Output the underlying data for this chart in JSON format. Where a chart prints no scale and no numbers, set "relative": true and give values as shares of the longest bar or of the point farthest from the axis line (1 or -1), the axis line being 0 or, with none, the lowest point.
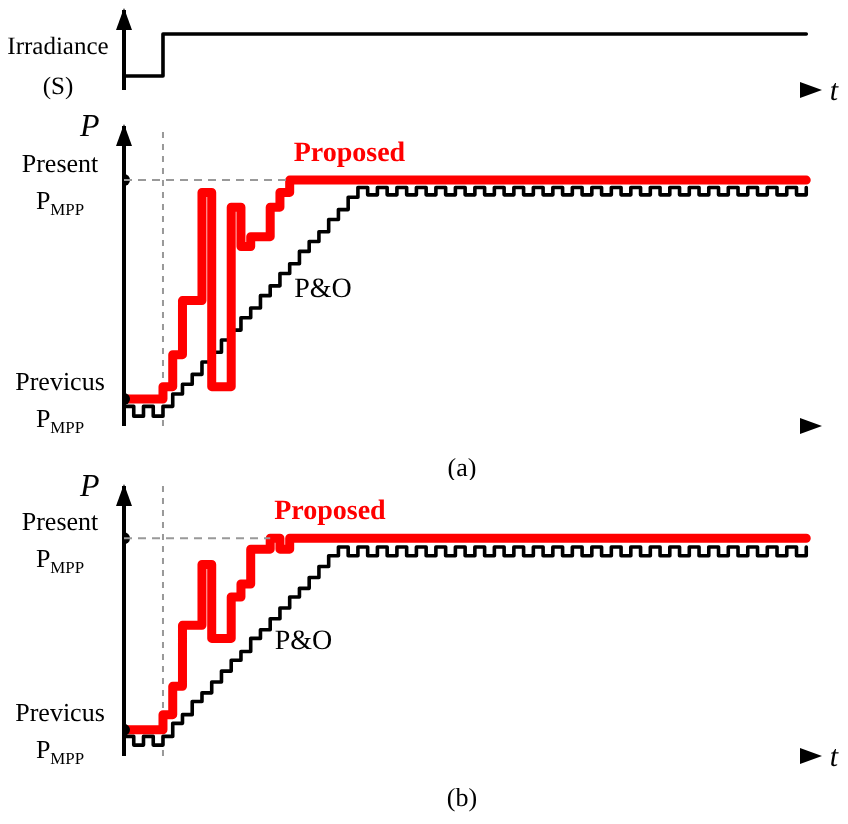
{
  "chart_data": [
    {
      "type": "step",
      "ylabel": "Irradiance (S)",
      "xlabel": "t",
      "relative": true,
      "categories": [
        null,
        null,
        null,
        null,
        null,
        null,
        null,
        null,
        null,
        null,
        null,
        null,
        null,
        null,
        null,
        null,
        null,
        null,
        null,
        null,
        null,
        null,
        null,
        null,
        null,
        null,
        null,
        null,
        null,
        null,
        null,
        null,
        null,
        null,
        null,
        null,
        null,
        null,
        null,
        null,
        null,
        null,
        null,
        null,
        null,
        null,
        null,
        null,
        null,
        null,
        null,
        null,
        null,
        null,
        null,
        null,
        null,
        null,
        null,
        null,
        null,
        null,
        null,
        null,
        null,
        null,
        null,
        null,
        null,
        null,
        null
      ],
      "series": [
        {
          "color": "#000000",
          "values": [
            0.25,
            0.25,
            0.25,
            0.25,
            1,
            1,
            1,
            1,
            1,
            1,
            1,
            1,
            1,
            1,
            1,
            1,
            1,
            1,
            1,
            1,
            1,
            1,
            1,
            1,
            1,
            1,
            1,
            1,
            1,
            1,
            1,
            1,
            1,
            1,
            1,
            1,
            1,
            1,
            1,
            1,
            1,
            1,
            1,
            1,
            1,
            1,
            1,
            1,
            1,
            1,
            1,
            1,
            1,
            1,
            1,
            1,
            1,
            1,
            1,
            1,
            1,
            1,
            1,
            1,
            1,
            1,
            1,
            1,
            1,
            1,
            1
          ]
        }
      ]
    },
    {
      "type": "step",
      "ylabel": "P",
      "relative": true,
      "annotations": [
        "(a)",
        "Previcus\nP$_{MPP}$",
        "Present\nP$_{MPP}$"
      ],
      "categories": [
        null,
        null,
        null,
        null,
        null,
        null,
        null,
        null,
        null,
        null,
        null,
        null,
        null,
        null,
        null,
        null,
        null,
        null,
        null,
        null,
        null,
        null,
        null,
        null,
        null,
        null,
        null,
        null,
        null,
        null,
        null,
        null,
        null,
        null,
        null,
        null,
        null,
        null,
        null,
        null,
        null,
        null,
        null,
        null,
        null,
        null,
        null,
        null,
        null,
        null,
        null,
        null,
        null,
        null,
        null,
        null,
        null,
        null,
        null,
        null,
        null,
        null,
        null,
        null,
        null,
        null,
        null,
        null,
        null,
        null,
        null
      ],
      "series": [
        {
          "name": "P&O",
          "color": "#000000",
          "values": [
            0.08,
            0.04,
            0.08,
            0.04,
            0.08,
            0.13,
            0.17,
            0.21,
            0.26,
            0.3,
            0.35,
            0.39,
            0.44,
            0.48,
            0.53,
            0.57,
            0.62,
            0.66,
            0.71,
            0.75,
            0.79,
            0.84,
            0.88,
            0.93,
            0.97,
            0.94,
            0.97,
            0.94,
            0.97,
            0.94,
            0.97,
            0.94,
            0.97,
            0.94,
            0.97,
            0.94,
            0.97,
            0.94,
            0.97,
            0.94,
            0.97,
            0.94,
            0.97,
            0.94,
            0.97,
            0.94,
            0.97,
            0.94,
            0.97,
            0.94,
            0.97,
            0.94,
            0.97,
            0.94,
            0.97,
            0.94,
            0.97,
            0.94,
            0.97,
            0.94,
            0.97,
            0.94,
            0.97,
            0.94,
            0.97,
            0.94,
            0.97,
            0.94,
            0.97,
            0.94,
            0.97
          ]
        },
        {
          "name": "Proposed",
          "color": "#ff0000",
          "values": [
            0.11,
            0.11,
            0.11,
            0.11,
            0.16,
            0.29,
            0.51,
            0.51,
            0.95,
            0.16,
            0.16,
            0.89,
            0.73,
            0.77,
            0.77,
            0.89,
            0.95,
            1,
            1,
            1,
            1,
            1,
            1,
            1,
            1,
            1,
            1,
            1,
            1,
            1,
            1,
            1,
            1,
            1,
            1,
            1,
            1,
            1,
            1,
            1,
            1,
            1,
            1,
            1,
            1,
            1,
            1,
            1,
            1,
            1,
            1,
            1,
            1,
            1,
            1,
            1,
            1,
            1,
            1,
            1,
            1,
            1,
            1,
            1,
            1,
            1,
            1,
            1,
            1,
            1,
            1
          ]
        },
        {
          "type": "scatter",
          "color": "#000000",
          "values": [
            0.11,
            null,
            null,
            null,
            null,
            null,
            null,
            null,
            null,
            null,
            null,
            null,
            null,
            null,
            null,
            null,
            null,
            null,
            null,
            null,
            null,
            null,
            null,
            null,
            null,
            null,
            null,
            null,
            null,
            null,
            null,
            null,
            null,
            null,
            null,
            null,
            null,
            null,
            null,
            null,
            null,
            null,
            null,
            null,
            null,
            null,
            null,
            null,
            null,
            null,
            null,
            null,
            null,
            null,
            null,
            null,
            null,
            null,
            null,
            null,
            null,
            null,
            null,
            null,
            null,
            null,
            null,
            null,
            null,
            null,
            null
          ]
        },
        {
          "type": "scatter",
          "color": "#000000",
          "values": [
            1,
            null,
            null,
            null,
            null,
            null,
            null,
            null,
            null,
            null,
            null,
            null,
            null,
            null,
            null,
            null,
            null,
            null,
            null,
            null,
            null,
            null,
            null,
            null,
            null,
            null,
            null,
            null,
            null,
            null,
            null,
            null,
            null,
            null,
            null,
            null,
            null,
            null,
            null,
            null,
            null,
            null,
            null,
            null,
            null,
            null,
            null,
            null,
            null,
            null,
            null,
            null,
            null,
            null,
            null,
            null,
            null,
            null,
            null,
            null,
            null,
            null,
            null,
            null,
            null,
            null,
            null,
            null,
            null,
            null,
            null
          ]
        }
      ]
    },
    {
      "type": "step",
      "ylabel": "P",
      "xlabel": "t",
      "relative": true,
      "annotations": [
        "(b)",
        "Previcus\nP$_{MPP}$",
        "Present\nP$_{MPP}$"
      ],
      "categories": [
        null,
        null,
        null,
        null,
        null,
        null,
        null,
        null,
        null,
        null,
        null,
        null,
        null,
        null,
        null,
        null,
        null,
        null,
        null,
        null,
        null,
        null,
        null,
        null,
        null,
        null,
        null,
        null,
        null,
        null,
        null,
        null,
        null,
        null,
        null,
        null,
        null,
        null,
        null,
        null,
        null,
        null,
        null,
        null,
        null,
        null,
        null,
        null,
        null,
        null,
        null,
        null,
        null,
        null,
        null,
        null,
        null,
        null,
        null,
        null,
        null,
        null,
        null,
        null,
        null,
        null,
        null,
        null,
        null,
        null,
        null
      ],
      "series": [
        {
          "name": "P&O",
          "color": "#000000",
          "values": [
            0.09,
            0.05,
            0.09,
            0.05,
            0.09,
            0.15,
            0.19,
            0.25,
            0.29,
            0.34,
            0.39,
            0.44,
            0.48,
            0.54,
            0.58,
            0.63,
            0.68,
            0.73,
            0.77,
            0.82,
            0.87,
            0.92,
            0.96,
            0.92,
            0.96,
            0.92,
            0.96,
            0.92,
            0.96,
            0.92,
            0.96,
            0.92,
            0.96,
            0.92,
            0.96,
            0.92,
            0.96,
            0.92,
            0.96,
            0.92,
            0.96,
            0.92,
            0.96,
            0.92,
            0.96,
            0.92,
            0.96,
            0.92,
            0.96,
            0.92,
            0.96,
            0.92,
            0.96,
            0.92,
            0.96,
            0.92,
            0.96,
            0.92,
            0.96,
            0.92,
            0.96,
            0.92,
            0.96,
            0.92,
            0.96,
            0.92,
            0.96,
            0.92,
            0.96,
            0.92,
            0.96
          ]
        },
        {
          "name": "Proposed",
          "color": "#ff0000",
          "values": [
            0.12,
            0.12,
            0.12,
            0.12,
            0.19,
            0.32,
            0.6,
            0.6,
            0.88,
            0.54,
            0.54,
            0.73,
            0.79,
            0.95,
            0.95,
            1,
            0.95,
            1,
            1,
            1,
            1,
            1,
            1,
            1,
            1,
            1,
            1,
            1,
            1,
            1,
            1,
            1,
            1,
            1,
            1,
            1,
            1,
            1,
            1,
            1,
            1,
            1,
            1,
            1,
            1,
            1,
            1,
            1,
            1,
            1,
            1,
            1,
            1,
            1,
            1,
            1,
            1,
            1,
            1,
            1,
            1,
            1,
            1,
            1,
            1,
            1,
            1,
            1,
            1,
            1,
            1
          ]
        },
        {
          "type": "scatter",
          "color": "#000000",
          "values": [
            0.12,
            null,
            null,
            null,
            null,
            null,
            null,
            null,
            null,
            null,
            null,
            null,
            null,
            null,
            null,
            null,
            null,
            null,
            null,
            null,
            null,
            null,
            null,
            null,
            null,
            null,
            null,
            null,
            null,
            null,
            null,
            null,
            null,
            null,
            null,
            null,
            null,
            null,
            null,
            null,
            null,
            null,
            null,
            null,
            null,
            null,
            null,
            null,
            null,
            null,
            null,
            null,
            null,
            null,
            null,
            null,
            null,
            null,
            null,
            null,
            null,
            null,
            null,
            null,
            null,
            null,
            null,
            null,
            null,
            null,
            null
          ]
        },
        {
          "type": "scatter",
          "color": "#000000",
          "values": [
            1,
            null,
            null,
            null,
            null,
            null,
            null,
            null,
            null,
            null,
            null,
            null,
            null,
            null,
            null,
            null,
            null,
            null,
            null,
            null,
            null,
            null,
            null,
            null,
            null,
            null,
            null,
            null,
            null,
            null,
            null,
            null,
            null,
            null,
            null,
            null,
            null,
            null,
            null,
            null,
            null,
            null,
            null,
            null,
            null,
            null,
            null,
            null,
            null,
            null,
            null,
            null,
            null,
            null,
            null,
            null,
            null,
            null,
            null,
            null,
            null,
            null,
            null,
            null,
            null,
            null,
            null,
            null,
            null,
            null,
            null
          ]
        }
      ]
    }
  ]
}
